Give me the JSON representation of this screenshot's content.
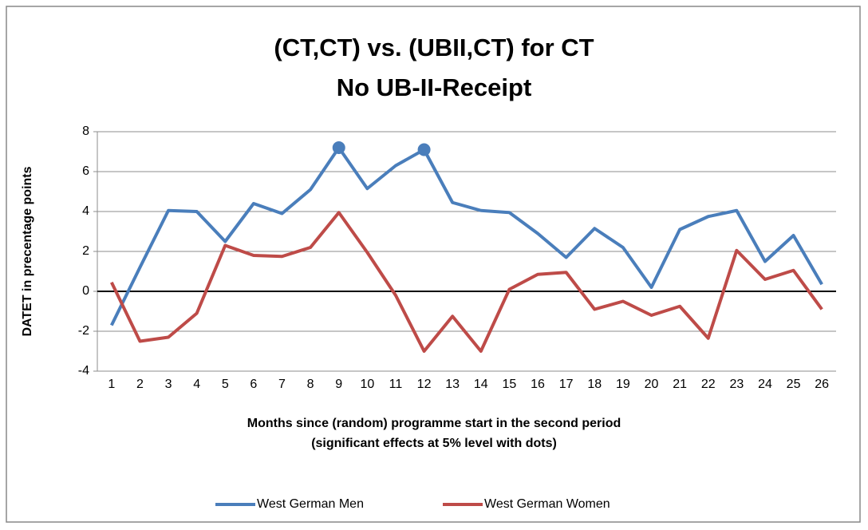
{
  "chart_data": {
    "type": "line",
    "title": "(CT,CT) vs. (UBII,CT) for CT",
    "subtitle": "No UB-II-Receipt",
    "xlabel": [
      "Months since (random) programme start in the second period",
      "(significant effects at 5% level with dots)"
    ],
    "ylabel": "DATET in precentage points",
    "categories": [
      1,
      2,
      3,
      4,
      5,
      6,
      7,
      8,
      9,
      10,
      11,
      12,
      13,
      14,
      15,
      16,
      17,
      18,
      19,
      20,
      21,
      22,
      23,
      24,
      25,
      26
    ],
    "series": [
      {
        "name": "West German Men",
        "color": "#4a7ebb",
        "values": [
          -1.7,
          1.2,
          4.05,
          4.0,
          2.5,
          4.4,
          3.9,
          5.1,
          7.2,
          5.15,
          6.3,
          7.1,
          4.45,
          4.05,
          3.95,
          2.9,
          1.7,
          3.15,
          2.2,
          0.2,
          3.1,
          3.75,
          4.05,
          1.5,
          2.8,
          0.35
        ],
        "significant": [
          false,
          false,
          false,
          false,
          false,
          false,
          false,
          false,
          true,
          false,
          false,
          true,
          false,
          false,
          false,
          false,
          false,
          false,
          false,
          false,
          false,
          false,
          false,
          false,
          false,
          false
        ]
      },
      {
        "name": "West German Women",
        "color": "#be4b48",
        "values": [
          0.45,
          -2.5,
          -2.3,
          -1.1,
          2.3,
          1.8,
          1.75,
          2.2,
          3.95,
          1.95,
          -0.2,
          -3.0,
          -1.25,
          -3.0,
          0.1,
          0.85,
          0.95,
          -0.9,
          -0.5,
          -1.2,
          -0.75,
          -2.35,
          2.05,
          0.6,
          1.05,
          -0.9
        ],
        "significant": [
          false,
          false,
          false,
          false,
          false,
          false,
          false,
          false,
          false,
          false,
          false,
          false,
          false,
          false,
          false,
          false,
          false,
          false,
          false,
          false,
          false,
          false,
          false,
          false,
          false,
          false
        ]
      }
    ],
    "ylim": [
      -4,
      8
    ],
    "yticks": [
      -4,
      -2,
      0,
      2,
      4,
      6,
      8
    ],
    "grid": true,
    "legend": "bottom"
  }
}
